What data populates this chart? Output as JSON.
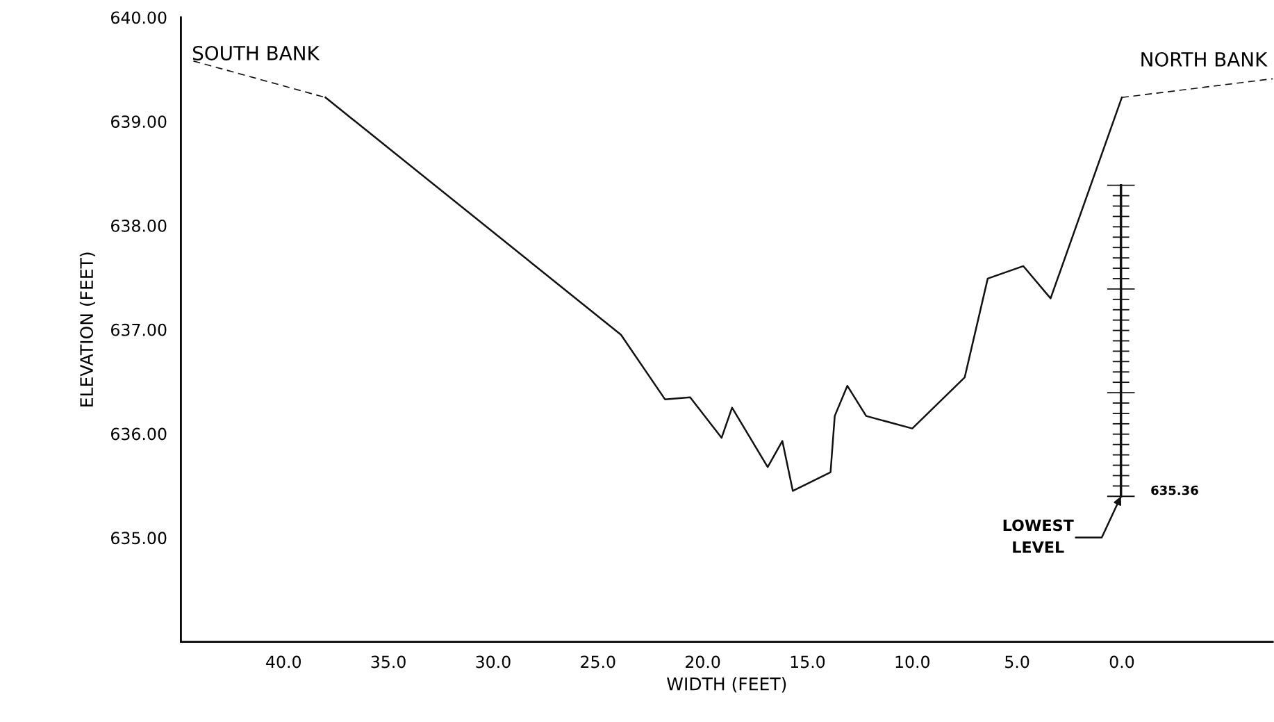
{
  "chart_data": {
    "type": "line",
    "xlabel": "WIDTH (FEET)",
    "ylabel": "ELEVATION (FEET)",
    "xlim": [
      44.9,
      -7.2
    ],
    "ylim": [
      634,
      640
    ],
    "xticks": [
      {
        "value": 40,
        "label": "40.0"
      },
      {
        "value": 35,
        "label": "35.0"
      },
      {
        "value": 30,
        "label": "30.0"
      },
      {
        "value": 25,
        "label": "25.0"
      },
      {
        "value": 20,
        "label": "20.0"
      },
      {
        "value": 15,
        "label": "15.0"
      },
      {
        "value": 10,
        "label": "10.0"
      },
      {
        "value": 5,
        "label": "5.0"
      },
      {
        "value": 0,
        "label": "0.0"
      }
    ],
    "yticks": [
      {
        "value": 635,
        "label": "635.00"
      },
      {
        "value": 636,
        "label": "636.00"
      },
      {
        "value": 637,
        "label": "637.00"
      },
      {
        "value": 638,
        "label": "638.00"
      },
      {
        "value": 639,
        "label": "639.00"
      },
      {
        "value": 640,
        "label": "640.00"
      }
    ],
    "grid": false,
    "legend": false,
    "marker": "none",
    "series": [
      {
        "color": "#111111",
        "line_style": "dashed",
        "x": [
          44.3,
          38.0
        ],
        "values": [
          639.58,
          639.23
        ]
      },
      {
        "color": "#111111",
        "line_style": "solid",
        "x": [
          38.0,
          23.9,
          21.8,
          20.6,
          19.1,
          18.6,
          16.9,
          16.2,
          15.7,
          13.9,
          13.7,
          13.1,
          12.2,
          10.0,
          7.5,
          6.4,
          4.7,
          3.4,
          0.0
        ],
        "values": [
          639.23,
          636.95,
          636.33,
          636.35,
          635.96,
          636.25,
          635.68,
          635.93,
          635.45,
          635.63,
          636.17,
          636.46,
          636.17,
          636.05,
          636.54,
          637.49,
          637.61,
          637.3,
          639.23
        ]
      },
      {
        "color": "#111111",
        "line_style": "dashed",
        "x": [
          0.0,
          -7.2
        ],
        "values": [
          639.23,
          639.41
        ]
      }
    ],
    "annotations": [
      "SOUTH BANK",
      "NORTH BANK",
      "635.36",
      "LOWEST\nLEVEL"
    ]
  }
}
